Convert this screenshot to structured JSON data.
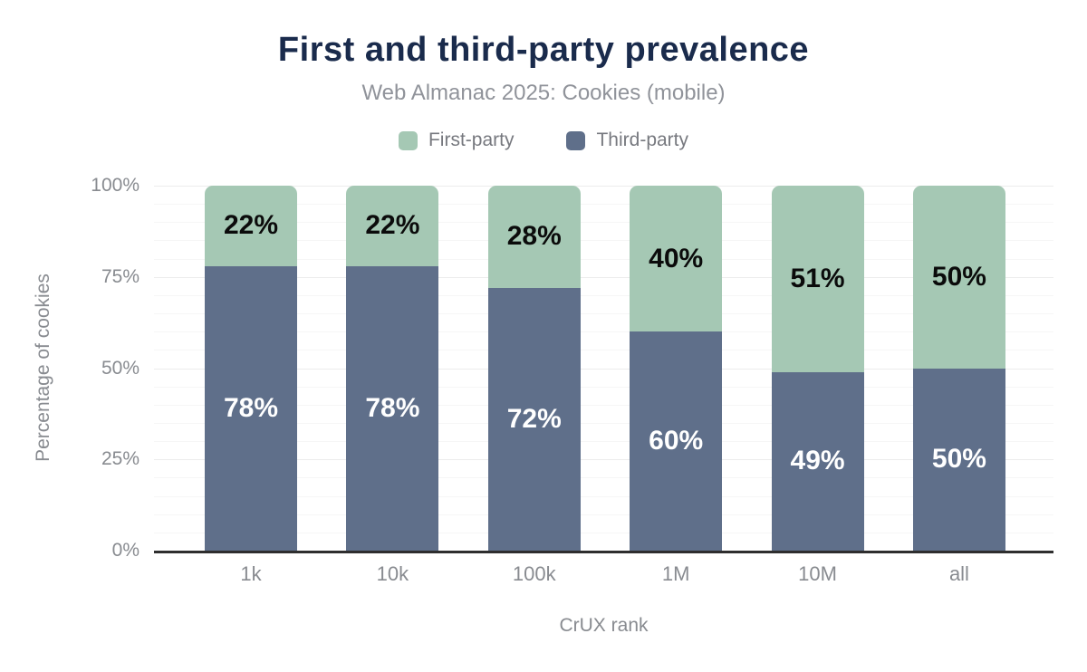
{
  "chart_data": {
    "type": "bar",
    "stacked": true,
    "title": "First and third-party prevalence",
    "subtitle": "Web Almanac 2025: Cookies (mobile)",
    "xlabel": "CrUX rank",
    "ylabel": "Percentage of cookies",
    "categories": [
      "1k",
      "10k",
      "100k",
      "1M",
      "10M",
      "all"
    ],
    "series": [
      {
        "name": "First-party",
        "color": "#a5c8b4",
        "values": [
          22,
          22,
          28,
          40,
          51,
          50
        ],
        "labels": [
          "22%",
          "22%",
          "28%",
          "40%",
          "51%",
          "50%"
        ],
        "label_color": "#0b0b0b"
      },
      {
        "name": "Third-party",
        "color": "#5f6f8a",
        "values": [
          78,
          78,
          72,
          60,
          49,
          50
        ],
        "labels": [
          "78%",
          "78%",
          "72%",
          "60%",
          "49%",
          "50%"
        ],
        "label_color": "#ffffff"
      }
    ],
    "ylim": [
      0,
      100
    ],
    "yticks": [
      {
        "value": 0,
        "label": "0%"
      },
      {
        "value": 25,
        "label": "25%"
      },
      {
        "value": 50,
        "label": "50%"
      },
      {
        "value": 75,
        "label": "75%"
      },
      {
        "value": 100,
        "label": "100%"
      }
    ],
    "grid": {
      "minor_step": 5,
      "major_step": 25
    },
    "legend_position": "top"
  },
  "colors": {
    "title": "#1a2b4c",
    "subtitle": "#90939a",
    "legend_text": "#77797f",
    "axis_text": "#888b90",
    "axis_line": "#2e2e2e",
    "grid_minor": "#f6f6f6",
    "grid_major": "#ececec",
    "background": "#ffffff"
  }
}
